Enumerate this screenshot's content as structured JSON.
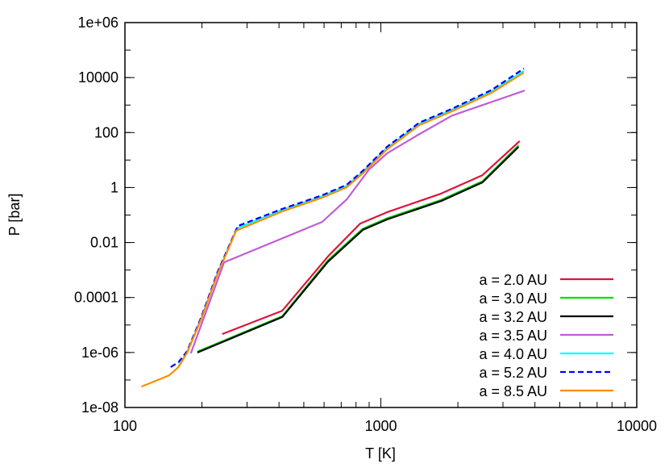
{
  "chart_data": {
    "type": "line",
    "xlabel": "T [K]",
    "ylabel": "P [bar]",
    "xscale": "log",
    "yscale": "log",
    "xlim": [
      100,
      10000
    ],
    "ylim": [
      1e-08,
      1000000.0
    ],
    "x_tick_labels": [
      "100",
      "1000",
      "10000"
    ],
    "x_ticks": [
      100,
      1000,
      10000
    ],
    "y_tick_labels": [
      "1e-08",
      "1e-06",
      "0.0001",
      "0.01",
      "1",
      "100",
      "10000",
      "1e+06"
    ],
    "y_ticks": [
      1e-08,
      1e-06,
      0.0001,
      0.01,
      1,
      100,
      10000,
      1000000.0
    ],
    "grid": false,
    "legend_position": "bottom-right",
    "series": [
      {
        "name": "a = 2.0 AU",
        "color": "#dc143c",
        "dash": "solid",
        "T": [
          240,
          412,
          621,
          830,
          1056,
          1720,
          2495,
          3490
        ],
        "logP": [
          -5.33,
          -4.48,
          -2.51,
          -1.31,
          -0.9,
          -0.22,
          0.45,
          1.69
        ]
      },
      {
        "name": "a = 3.0 AU",
        "color": "#00e000",
        "dash": "solid",
        "T": [
          192,
          412,
          621,
          850,
          1056,
          1720,
          2495,
          3450
        ],
        "logP": [
          -5.97,
          -4.68,
          -2.65,
          -1.5,
          -1.12,
          -0.45,
          0.23,
          1.53
        ]
      },
      {
        "name": "a = 3.2 AU",
        "color": "#000000",
        "dash": "solid",
        "T": [
          192,
          412,
          621,
          850,
          1056,
          1720,
          2495,
          3450
        ],
        "logP": [
          -6.0,
          -4.71,
          -2.7,
          -1.54,
          -1.16,
          -0.49,
          0.19,
          1.48
        ]
      },
      {
        "name": "a = 3.5 AU",
        "color": "#c05cd8",
        "dash": "solid",
        "T": [
          181,
          244,
          590,
          736,
          900,
          1056,
          1400,
          1900,
          3650
        ],
        "logP": [
          -6.03,
          -2.72,
          -1.25,
          -0.43,
          0.66,
          1.24,
          1.92,
          2.62,
          3.53
        ]
      },
      {
        "name": "a = 4.0 AU",
        "color": "#00ffff",
        "dash": "solid",
        "T": [
          162,
          175,
          199,
          230,
          274,
          411,
          590,
          736,
          848,
          1056,
          1413,
          1890,
          2711,
          3624
        ],
        "logP": [
          -6.5,
          -5.98,
          -4.74,
          -3.12,
          -1.48,
          -0.82,
          -0.32,
          0.06,
          0.56,
          1.44,
          2.32,
          2.82,
          3.5,
          4.24
        ]
      },
      {
        "name": "a = 5.2 AU",
        "color": "#0000ff",
        "dash": "dashed",
        "T": [
          151,
          162,
          175,
          199,
          230,
          276,
          411,
          590,
          736,
          848,
          1056,
          1413,
          1890,
          2711,
          3624
        ],
        "logP": [
          -6.53,
          -6.35,
          -5.95,
          -4.7,
          -3.08,
          -1.4,
          -0.78,
          -0.28,
          0.1,
          0.6,
          1.48,
          2.36,
          2.86,
          3.55,
          4.33
        ]
      },
      {
        "name": "a = 8.5 AU",
        "color": "#ff8c00",
        "dash": "solid",
        "T": [
          116,
          149,
          162,
          175,
          199,
          230,
          272,
          411,
          590,
          736,
          848,
          1056,
          1413,
          1890,
          2711,
          3624
        ],
        "logP": [
          -7.24,
          -6.83,
          -6.53,
          -6.0,
          -4.77,
          -3.16,
          -1.57,
          -0.87,
          -0.37,
          0.01,
          0.51,
          1.39,
          2.27,
          2.77,
          3.45,
          4.18
        ]
      }
    ]
  }
}
